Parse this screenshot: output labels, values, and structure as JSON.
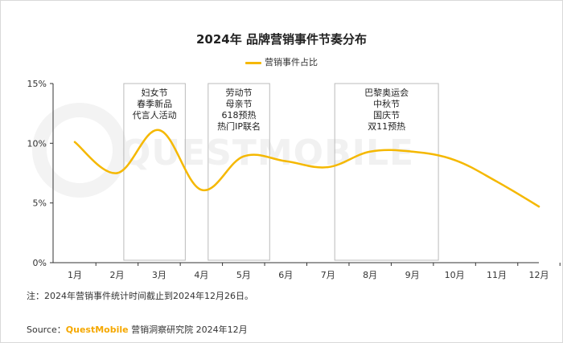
{
  "title": "2024年 品牌营销事件节奏分布",
  "legend": {
    "label": "营销事件占比",
    "color": "#f5b800"
  },
  "watermark": "QUESTMOBILE",
  "note": "注：2024年营销事件统计时间截止到2024年12月26日。",
  "source": {
    "prefix": "Source：",
    "brand": "QuestMobile",
    "suffix": " 营销洞察研究院 2024年12月"
  },
  "chart_data": {
    "type": "line",
    "title": "2024年 品牌营销事件节奏分布",
    "categories": [
      "1月",
      "2月",
      "3月",
      "4月",
      "5月",
      "6月",
      "7月",
      "8月",
      "9月",
      "10月",
      "11月",
      "12月"
    ],
    "series": [
      {
        "name": "营销事件占比",
        "values": [
          10.1,
          7.5,
          11.1,
          6.1,
          8.9,
          8.5,
          8.0,
          9.3,
          9.3,
          8.6,
          6.8,
          4.7
        ]
      }
    ],
    "y_ticks": [
      "0%",
      "5%",
      "10%",
      "15%"
    ],
    "ylim": [
      0,
      15
    ],
    "y_unit": "%",
    "annotations": [
      {
        "from": "3月",
        "to": "4月",
        "lines": [
          "妇女节",
          "春季新品",
          "代言人活动"
        ]
      },
      {
        "from": "5月",
        "to": "6月",
        "lines": [
          "劳动节",
          "母亲节",
          "618预热",
          "热门IP联名"
        ]
      },
      {
        "from": "8月",
        "to": "10月",
        "lines": [
          "巴黎奥运会",
          "中秋节",
          "国庆节",
          "双11预热"
        ]
      }
    ],
    "line_color": "#f5b800",
    "grid": false
  }
}
